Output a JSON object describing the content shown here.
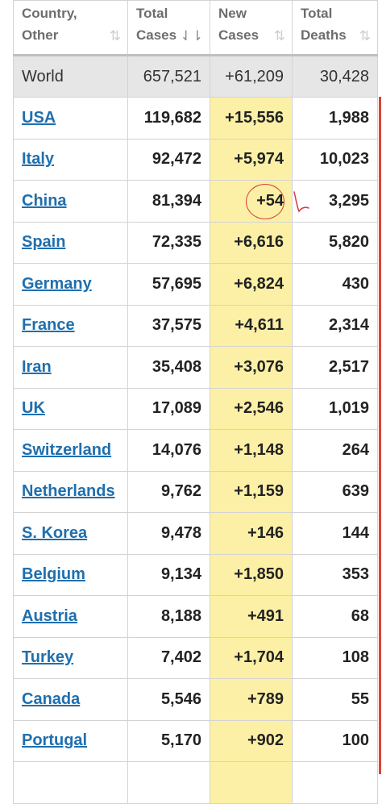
{
  "table": {
    "headers": [
      {
        "line1": "Country,",
        "line2": "Other",
        "sort_icon": "sort-updown-icon"
      },
      {
        "line1": "Total",
        "line2": "Cases",
        "sort_icon": "sort-desc-icon"
      },
      {
        "line1": "New",
        "line2": "Cases",
        "sort_icon": "sort-updown-icon"
      },
      {
        "line1": "Total",
        "line2": "Deaths",
        "sort_icon": "sort-updown-icon"
      }
    ],
    "world": {
      "country": "World",
      "total_cases": "657,521",
      "new_cases": "+61,209",
      "total_deaths": "30,428"
    },
    "rows": [
      {
        "country": "USA",
        "total_cases": "119,682",
        "new_cases": "+15,556",
        "total_deaths": "1,988"
      },
      {
        "country": "Italy",
        "total_cases": "92,472",
        "new_cases": "+5,974",
        "total_deaths": "10,023"
      },
      {
        "country": "China",
        "total_cases": "81,394",
        "new_cases": "+54",
        "total_deaths": "3,295"
      },
      {
        "country": "Spain",
        "total_cases": "72,335",
        "new_cases": "+6,616",
        "total_deaths": "5,820"
      },
      {
        "country": "Germany",
        "total_cases": "57,695",
        "new_cases": "+6,824",
        "total_deaths": "430"
      },
      {
        "country": "France",
        "total_cases": "37,575",
        "new_cases": "+4,611",
        "total_deaths": "2,314"
      },
      {
        "country": "Iran",
        "total_cases": "35,408",
        "new_cases": "+3,076",
        "total_deaths": "2,517"
      },
      {
        "country": "UK",
        "total_cases": "17,089",
        "new_cases": "+2,546",
        "total_deaths": "1,019"
      },
      {
        "country": "Switzerland",
        "total_cases": "14,076",
        "new_cases": "+1,148",
        "total_deaths": "264"
      },
      {
        "country": "Netherlands",
        "total_cases": "9,762",
        "new_cases": "+1,159",
        "total_deaths": "639"
      },
      {
        "country": "S. Korea",
        "total_cases": "9,478",
        "new_cases": "+146",
        "total_deaths": "144"
      },
      {
        "country": "Belgium",
        "total_cases": "9,134",
        "new_cases": "+1,850",
        "total_deaths": "353"
      },
      {
        "country": "Austria",
        "total_cases": "8,188",
        "new_cases": "+491",
        "total_deaths": "68"
      },
      {
        "country": "Turkey",
        "total_cases": "7,402",
        "new_cases": "+1,704",
        "total_deaths": "108"
      },
      {
        "country": "Canada",
        "total_cases": "5,546",
        "new_cases": "+789",
        "total_deaths": "55"
      },
      {
        "country": "Portugal",
        "total_cases": "5,170",
        "new_cases": "+902",
        "total_deaths": "100"
      }
    ]
  },
  "colors": {
    "link": "#1f6fae",
    "new_cases_highlight": "#fcf0a6",
    "world_row_bg": "#e6e6e6",
    "annotation_red": "#d33c3c"
  }
}
